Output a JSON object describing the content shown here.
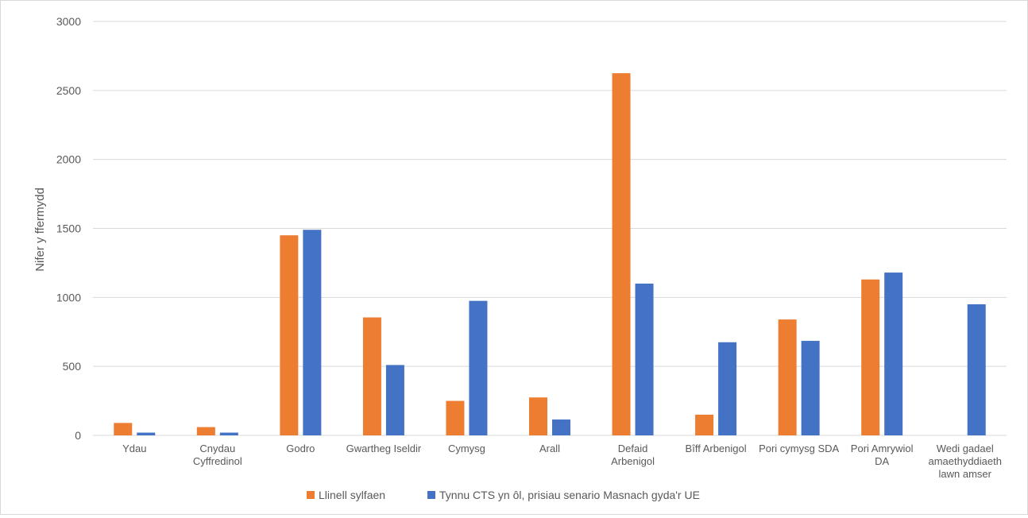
{
  "chart_data": {
    "type": "bar",
    "title": "",
    "xlabel": "",
    "ylabel": "Nifer y ffermydd",
    "ylim": [
      0,
      3000
    ],
    "yticks": [
      0,
      500,
      1000,
      1500,
      2000,
      2500,
      3000
    ],
    "grid": true,
    "legend_position": "bottom",
    "categories": [
      [
        "Ydau"
      ],
      [
        "Cnydau",
        "Cyffredinol"
      ],
      [
        "Godro"
      ],
      [
        "Gwartheg Iseldir"
      ],
      [
        "Cymysg"
      ],
      [
        "Arall"
      ],
      [
        "Defaid",
        "Arbenigol"
      ],
      [
        "Bîff Arbenigol"
      ],
      [
        "Pori cymysg SDA"
      ],
      [
        "Pori Amrywiol",
        "DA"
      ],
      [
        "Wedi gadael",
        "amaethyddiaeth",
        "lawn amser"
      ]
    ],
    "series": [
      {
        "name": "Llinell sylfaen",
        "color": "#ed7d31",
        "values": [
          90,
          60,
          1450,
          855,
          250,
          275,
          2625,
          150,
          840,
          1130,
          0
        ]
      },
      {
        "name": "Tynnu CTS yn ôl, prisiau senario Masnach gyda'r UE",
        "color": "#4472c4",
        "values": [
          20,
          20,
          1490,
          510,
          975,
          115,
          1100,
          675,
          685,
          1180,
          950
        ]
      }
    ]
  }
}
